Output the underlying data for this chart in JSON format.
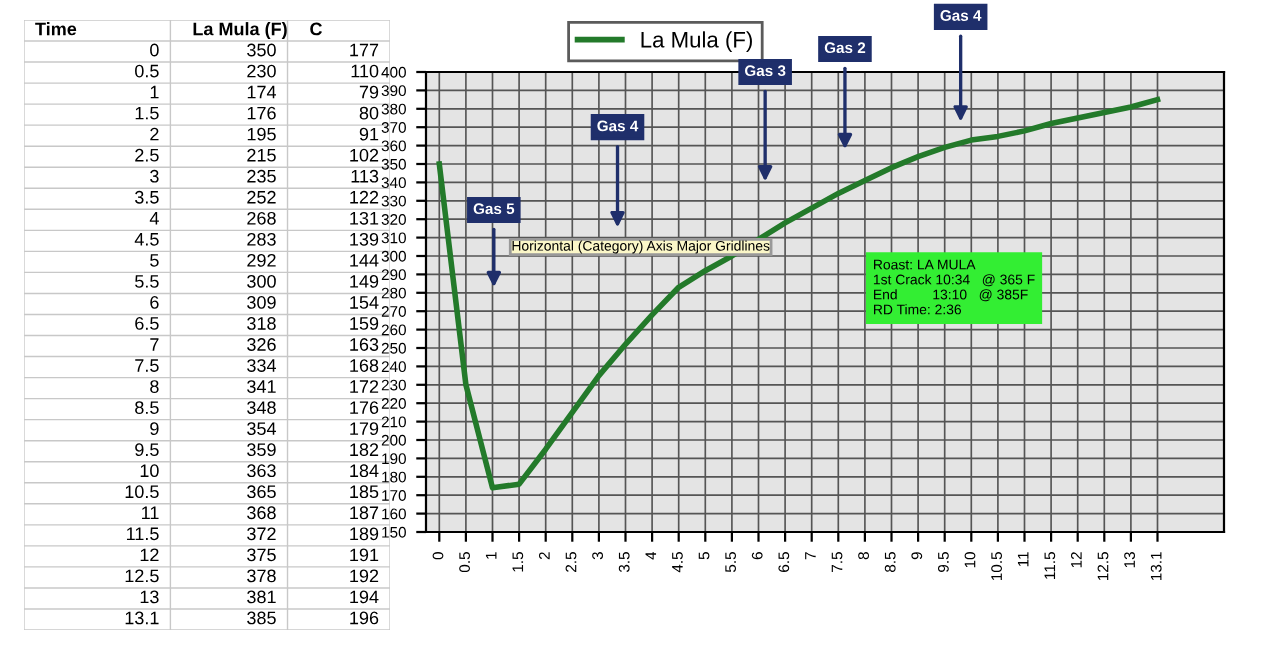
{
  "chart_data": [
    {
      "type": "other",
      "annotations": [
        "Time\n0\n0.5\n1\n1.5\n2\n2.5\n3\n3.5\n4\n4.5\n5\n5.5\n6\n6.5\n7\n7.5\n8\n8.5\n9\n9.5\n10\n10.5\n11\n11.5\n12\n12.5\n13\n13.1",
        "La Mula (F)\n350\n230\n174\n176\n195\n215\n235\n252\n268\n283\n292\n300\n309\n318\n326\n334\n341\n348\n354\n359\n363\n365\n368\n372\n375\n378\n381\n385",
        "C\n177\n110\n79\n80\n91\n102\n113\n122\n131\n139\n144\n149\n154\n159\n163\n168\n172\n176\n179\n182\n184\n185\n187\n189\n191\n192\n194\n196"
      ]
    },
    {
      "type": "line",
      "categories": [
        "0",
        "0.5",
        "1",
        "1.5",
        "2",
        "2.5",
        "3",
        "3.5",
        "4",
        "4.5",
        "5",
        "5.5",
        "6",
        "6.5",
        "7",
        "7.5",
        "8",
        "8.5",
        "9",
        "9.5",
        "10",
        "10.5",
        "11",
        "11.5",
        "12",
        "12.5",
        "13",
        "13.1"
      ],
      "series": [
        {
          "name": "La Mula (F)",
          "color": "#237a2a",
          "values": [
            350,
            230,
            174,
            176,
            195,
            215,
            235,
            252,
            268,
            283,
            292,
            300,
            309,
            318,
            326,
            334,
            341,
            348,
            354,
            359,
            363,
            365,
            368,
            372,
            375,
            378,
            381,
            385
          ]
        }
      ],
      "ylim": [
        150,
        400
      ],
      "yticks": [
        150,
        160,
        170,
        180,
        190,
        200,
        210,
        220,
        230,
        240,
        250,
        260,
        270,
        280,
        290,
        300,
        310,
        320,
        330,
        340,
        350,
        360,
        370,
        380,
        390,
        400
      ],
      "grid": true,
      "legend": "top",
      "marker": "none",
      "line_style": "solid",
      "annotations": [
        "Gas 5",
        "Gas 4",
        "Gas 3",
        "Gas 2",
        "Gas 4",
        "Horizontal (Category) Axis Major Gridlines",
        "Roast: LA MULA\n1st Crack 10:34   @ 365 F\nEnd         13:10   @ 385F\nRD Time: 2:36"
      ]
    }
  ]
}
